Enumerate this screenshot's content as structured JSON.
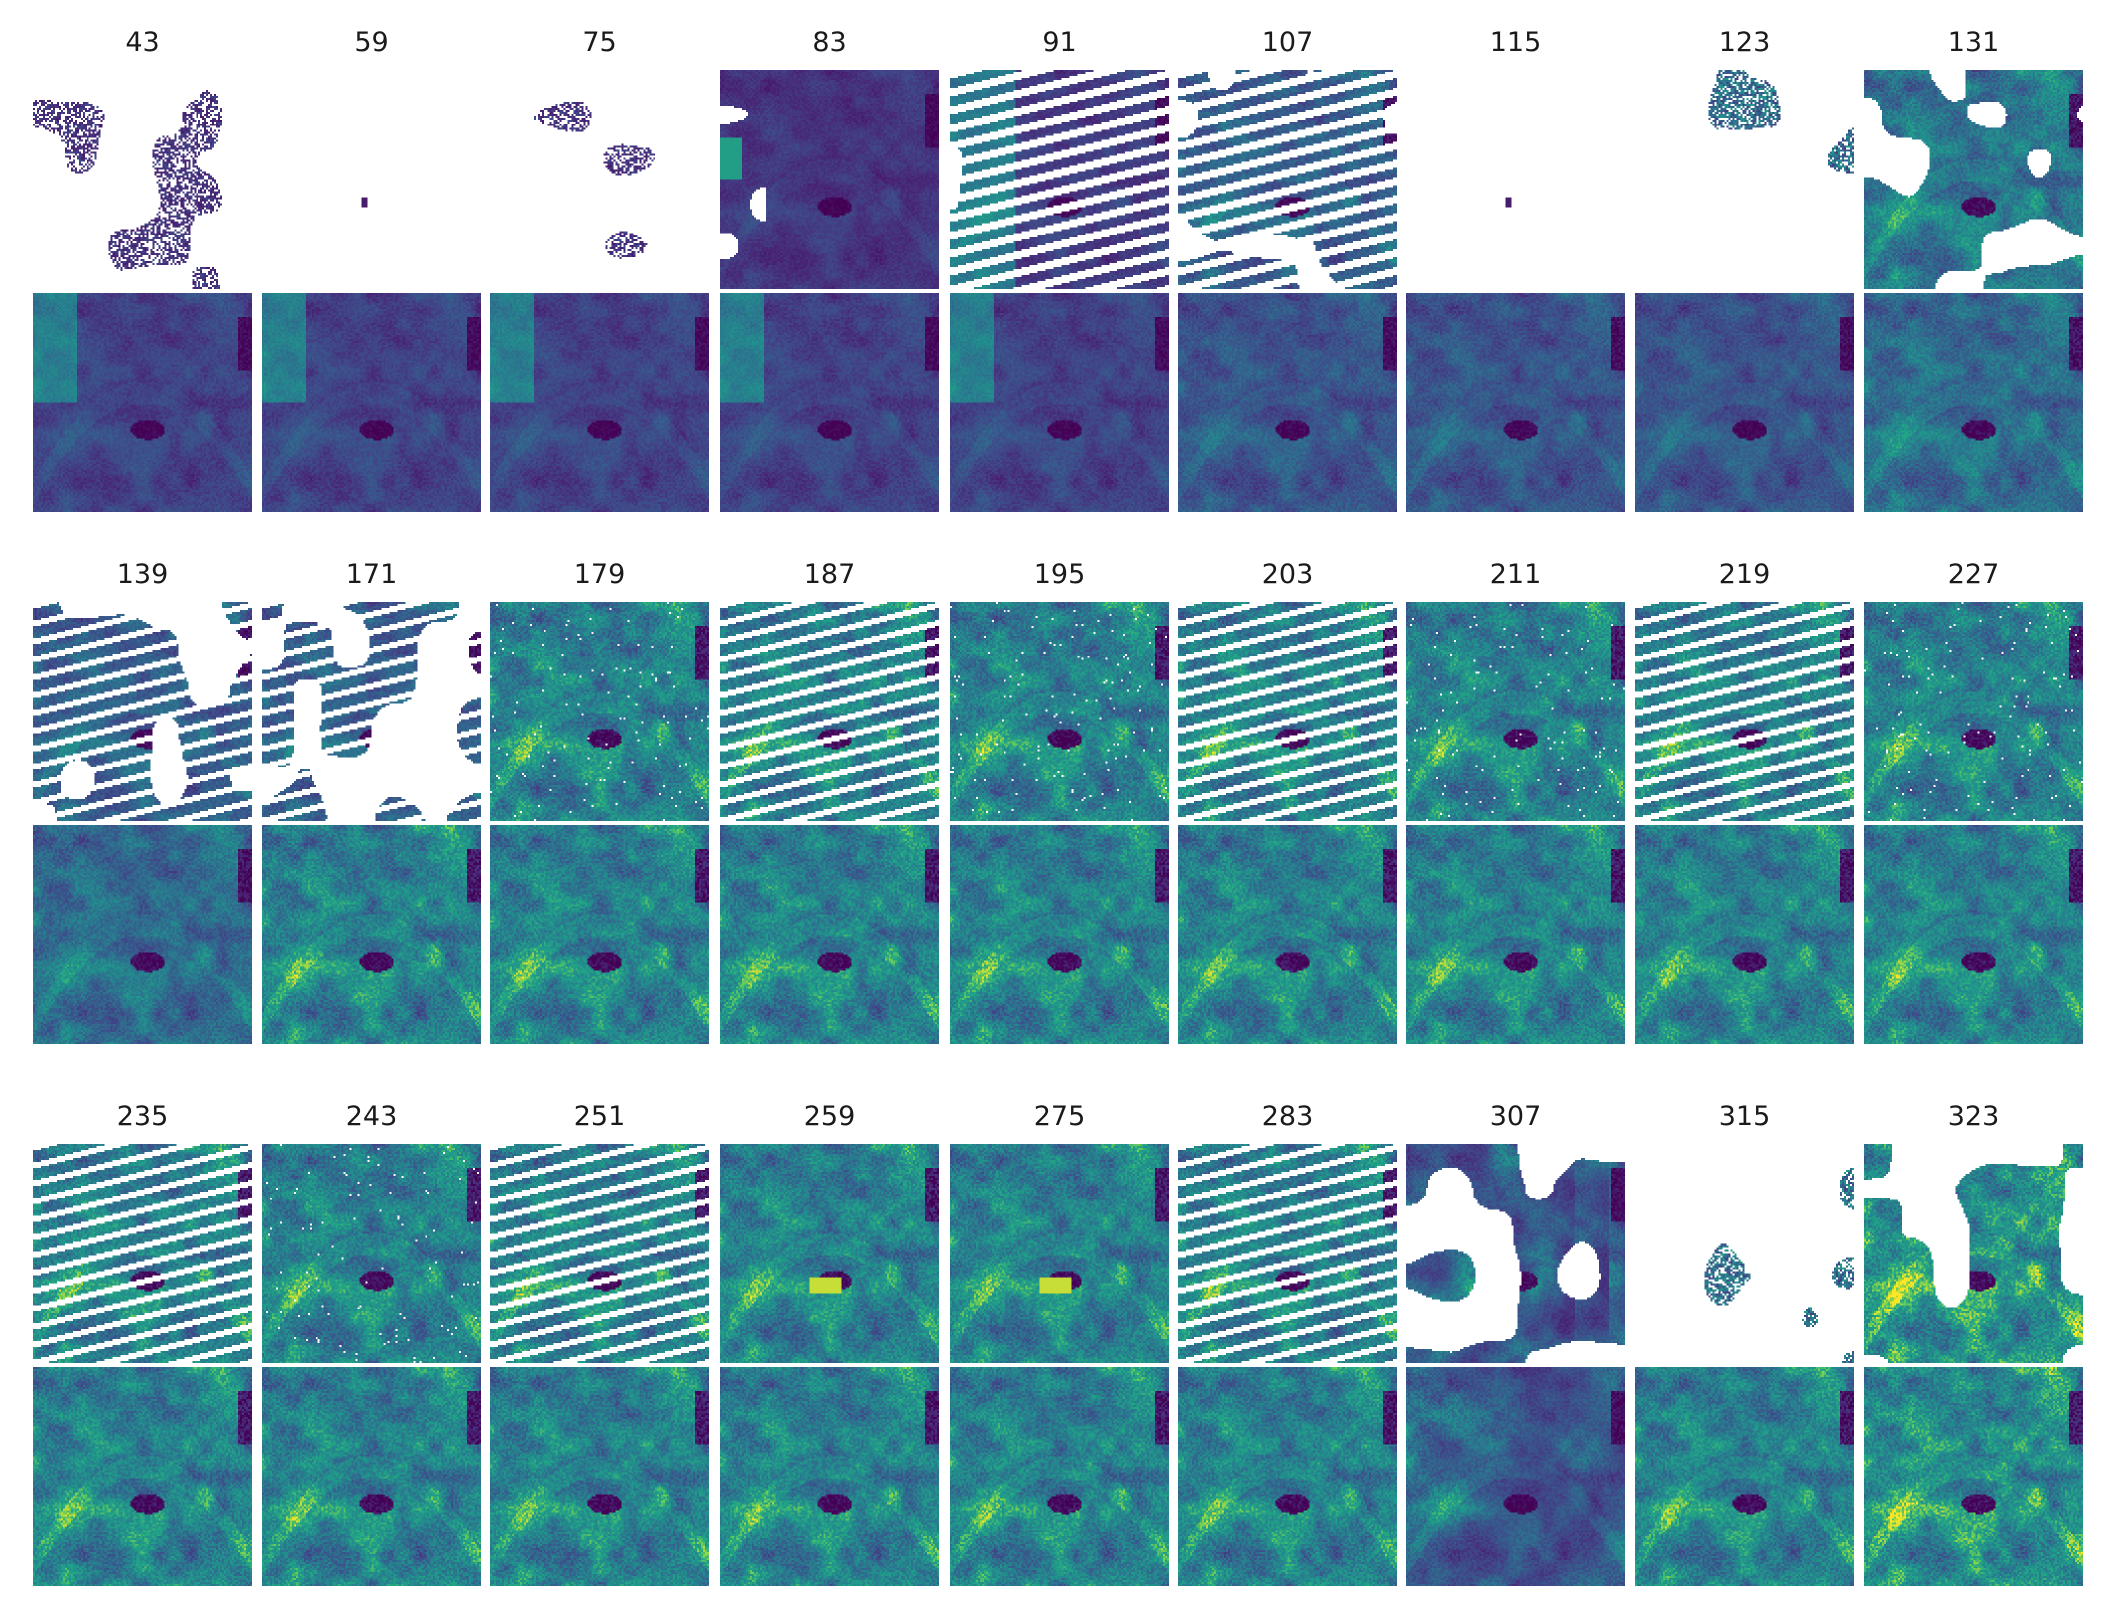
{
  "figure": {
    "panels": [
      {
        "label": "43",
        "obs": {
          "coverage": 0.14,
          "type": "sparse-dark"
        }
      },
      {
        "label": "59",
        "obs": {
          "coverage": 0.0,
          "type": "empty"
        }
      },
      {
        "label": "75",
        "obs": {
          "coverage": 0.05,
          "type": "sparse-dark"
        }
      },
      {
        "label": "83",
        "obs": {
          "coverage": 0.85,
          "type": "dark-cloudy"
        }
      },
      {
        "label": "91",
        "obs": {
          "coverage": 0.55,
          "type": "striped-dark"
        }
      },
      {
        "label": "107",
        "obs": {
          "coverage": 0.55,
          "type": "striped-mixed"
        }
      },
      {
        "label": "115",
        "obs": {
          "coverage": 0.01,
          "type": "empty"
        }
      },
      {
        "label": "123",
        "obs": {
          "coverage": 0.1,
          "type": "sparse-mixed"
        }
      },
      {
        "label": "131",
        "obs": {
          "coverage": 0.65,
          "type": "cloudy-green"
        }
      },
      {
        "label": "139",
        "obs": {
          "coverage": 0.45,
          "type": "striped-cloud"
        }
      },
      {
        "label": "171",
        "obs": {
          "coverage": 0.45,
          "type": "striped-cloud"
        }
      },
      {
        "label": "179",
        "obs": {
          "coverage": 0.97,
          "type": "full-green"
        }
      },
      {
        "label": "187",
        "obs": {
          "coverage": 0.7,
          "type": "striped-green"
        }
      },
      {
        "label": "195",
        "obs": {
          "coverage": 0.97,
          "type": "full-green"
        }
      },
      {
        "label": "203",
        "obs": {
          "coverage": 0.7,
          "type": "striped-green"
        }
      },
      {
        "label": "211",
        "obs": {
          "coverage": 0.98,
          "type": "full-green"
        }
      },
      {
        "label": "219",
        "obs": {
          "coverage": 0.7,
          "type": "striped-green"
        }
      },
      {
        "label": "227",
        "obs": {
          "coverage": 0.98,
          "type": "full-green"
        }
      },
      {
        "label": "235",
        "obs": {
          "coverage": 0.7,
          "type": "striped-green"
        }
      },
      {
        "label": "243",
        "obs": {
          "coverage": 0.98,
          "type": "full-green"
        }
      },
      {
        "label": "251",
        "obs": {
          "coverage": 0.7,
          "type": "striped-green"
        }
      },
      {
        "label": "259",
        "obs": {
          "coverage": 0.98,
          "type": "full-yellow"
        }
      },
      {
        "label": "275",
        "obs": {
          "coverage": 0.98,
          "type": "full-yellow"
        }
      },
      {
        "label": "283",
        "obs": {
          "coverage": 0.7,
          "type": "striped-green"
        }
      },
      {
        "label": "307",
        "obs": {
          "coverage": 0.75,
          "type": "cloudy-dark"
        }
      },
      {
        "label": "315",
        "obs": {
          "coverage": 0.06,
          "type": "sparse-mixed"
        }
      },
      {
        "label": "323",
        "obs": {
          "coverage": 0.75,
          "type": "cloudy-yellow"
        }
      }
    ],
    "recon_types": [
      "dark",
      "dark",
      "dark",
      "dark",
      "dark",
      "dark-mid",
      "dark-mid",
      "dark-mid",
      "mid",
      "mid",
      "green",
      "green",
      "green",
      "green",
      "green",
      "green",
      "green",
      "green",
      "green",
      "green",
      "green",
      "green",
      "green",
      "green",
      "dark-mixed",
      "green",
      "green-yellow"
    ],
    "colormap": "viridis",
    "colors": {
      "viridis_low": "#440154",
      "viridis_mid": "#21918c",
      "viridis_high": "#fde725",
      "missing": "#ffffff",
      "label_text": "#1a1a1a"
    }
  }
}
